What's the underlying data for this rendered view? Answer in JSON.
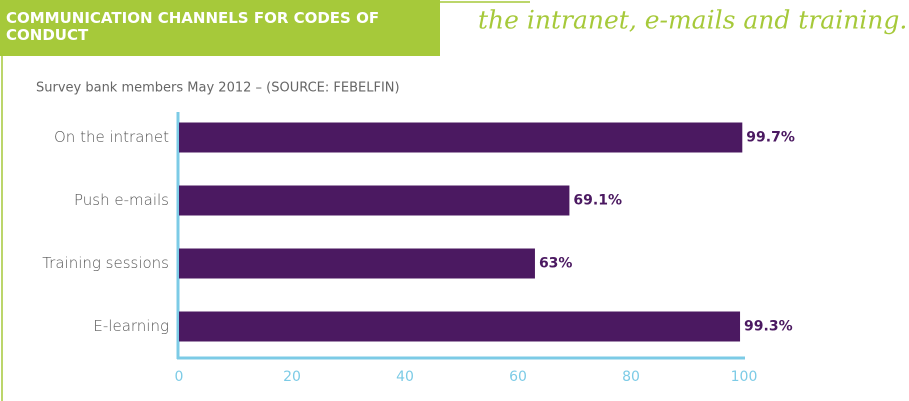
{
  "title": "COMMUNICATION CHANNELS FOR CODES OF CONDUCT",
  "quote": "the intranet, e-mails and training.",
  "chart_data": {
    "type": "bar",
    "orientation": "horizontal",
    "subtitle": "Survey bank members May 2012 – (SOURCE: FEBELFIN)",
    "categories": [
      "On the intranet",
      "Push e-mails",
      "Training sessions",
      "E-learning"
    ],
    "values": [
      99.7,
      69.1,
      63,
      99.3
    ],
    "value_labels": [
      "99.7%",
      "69.1%",
      "63%",
      "99.3%"
    ],
    "color": "#4b1961",
    "xlim": [
      0,
      100
    ],
    "xticks": [
      0,
      20,
      40,
      60,
      80,
      100
    ],
    "grid": false
  }
}
